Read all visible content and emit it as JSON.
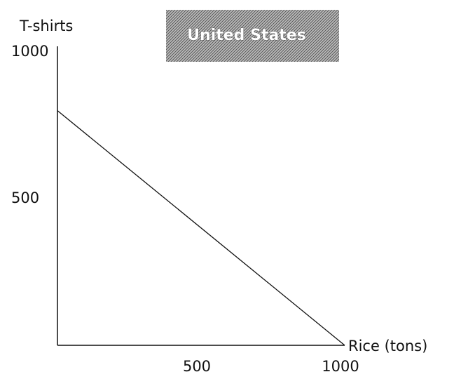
{
  "chart_data": {
    "type": "line",
    "title": "United States",
    "x_label": "Rice (tons)",
    "y_label": "T-shirts",
    "x": [
      0,
      1000
    ],
    "series": [
      {
        "name": "United States",
        "color": "#111111",
        "values": [
          800,
          0
        ]
      }
    ],
    "xlim": [
      0,
      1000
    ],
    "xticks": [
      500,
      1000
    ],
    "ylim": [
      0,
      1000
    ],
    "yticks": [
      500,
      1000
    ],
    "grid": false
  }
}
